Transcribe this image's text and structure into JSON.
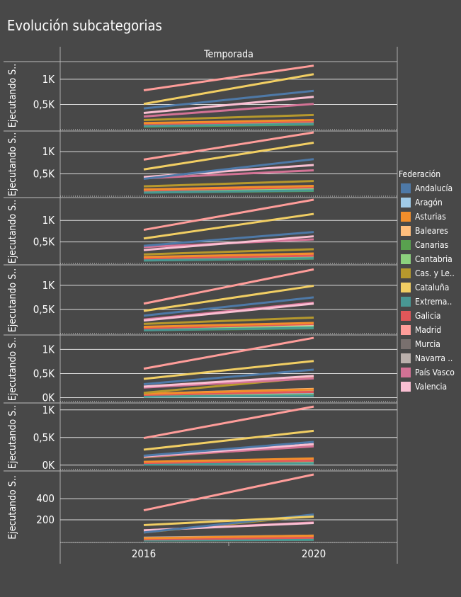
{
  "title": "Evolución subcategorias",
  "chart_data": {
    "type": "line",
    "column_header": "Temporada",
    "x_categories": [
      "2016",
      "2020"
    ],
    "row_label": "Ejecutando S..",
    "legend_title": "Federación",
    "legend_placement": "right",
    "federations": [
      {
        "name": "Andalucía",
        "color": "#4e79a7"
      },
      {
        "name": "Aragón",
        "color": "#a0cbe8"
      },
      {
        "name": "Asturias",
        "color": "#f28e2b"
      },
      {
        "name": "Baleares",
        "color": "#ffbe7d"
      },
      {
        "name": "Canarias",
        "color": "#59a14f"
      },
      {
        "name": "Cantabria",
        "color": "#8cd17d"
      },
      {
        "name": "Cas. y Le..",
        "color": "#b6992d"
      },
      {
        "name": "Cataluña",
        "color": "#f1ce63"
      },
      {
        "name": "Extrema..",
        "color": "#499894"
      },
      {
        "name": "Galicia",
        "color": "#e15759"
      },
      {
        "name": "Madrid",
        "color": "#ff9d9a"
      },
      {
        "name": "Murcia",
        "color": "#79706e"
      },
      {
        "name": "Navarra ..",
        "color": "#bab0ac"
      },
      {
        "name": "País Vasco",
        "color": "#d37295"
      },
      {
        "name": "Valencia",
        "color": "#fabfd2"
      }
    ],
    "panels": [
      {
        "ylim": [
          0,
          1350
        ],
        "yticks": [
          {
            "v": 500,
            "label": "0,5K"
          },
          {
            "v": 1000,
            "label": "1K"
          }
        ],
        "values": [
          [
            420,
            770
          ],
          [
            100,
            140
          ],
          [
            130,
            190
          ],
          [
            120,
            170
          ],
          [
            60,
            100
          ],
          [
            80,
            120
          ],
          [
            190,
            290
          ],
          [
            510,
            1100
          ],
          [
            70,
            110
          ],
          [
            110,
            160
          ],
          [
            780,
            1270
          ],
          [
            90,
            130
          ],
          [
            110,
            150
          ],
          [
            260,
            510
          ],
          [
            330,
            650
          ]
        ]
      },
      {
        "ylim": [
          0,
          1430
        ],
        "yticks": [
          {
            "v": 500,
            "label": "0,5K"
          },
          {
            "v": 1000,
            "label": "1K"
          }
        ],
        "values": [
          [
            390,
            830
          ],
          [
            110,
            170
          ],
          [
            150,
            230
          ],
          [
            130,
            200
          ],
          [
            80,
            120
          ],
          [
            100,
            150
          ],
          [
            220,
            340
          ],
          [
            600,
            1200
          ],
          [
            80,
            130
          ],
          [
            130,
            200
          ],
          [
            820,
            1430
          ],
          [
            100,
            160
          ],
          [
            120,
            180
          ],
          [
            400,
            580
          ],
          [
            430,
            700
          ]
        ]
      },
      {
        "ylim": [
          0,
          1480
        ],
        "yticks": [
          {
            "v": 500,
            "label": "0,5K"
          },
          {
            "v": 1000,
            "label": "1K"
          }
        ],
        "values": [
          [
            410,
            730
          ],
          [
            100,
            160
          ],
          [
            150,
            230
          ],
          [
            130,
            200
          ],
          [
            70,
            110
          ],
          [
            90,
            140
          ],
          [
            210,
            330
          ],
          [
            580,
            1150
          ],
          [
            70,
            120
          ],
          [
            120,
            180
          ],
          [
            780,
            1480
          ],
          [
            90,
            150
          ],
          [
            110,
            170
          ],
          [
            380,
            560
          ],
          [
            310,
            630
          ]
        ]
      },
      {
        "ylim": [
          0,
          1380
        ],
        "yticks": [
          {
            "v": 500,
            "label": "0,5K"
          },
          {
            "v": 1000,
            "label": "1K"
          }
        ],
        "values": [
          [
            370,
            750
          ],
          [
            100,
            150
          ],
          [
            140,
            220
          ],
          [
            120,
            190
          ],
          [
            70,
            110
          ],
          [
            90,
            140
          ],
          [
            200,
            330
          ],
          [
            470,
            990
          ],
          [
            70,
            120
          ],
          [
            110,
            200
          ],
          [
            620,
            1330
          ],
          [
            90,
            140
          ],
          [
            110,
            170
          ],
          [
            290,
            640
          ],
          [
            270,
            620
          ]
        ]
      },
      {
        "ylim": [
          -80,
          1270
        ],
        "yticks": [
          {
            "v": 0,
            "label": "0K"
          },
          {
            "v": 500,
            "label": "0,5K"
          },
          {
            "v": 1000,
            "label": "1K"
          }
        ],
        "values": [
          [
            280,
            580
          ],
          [
            40,
            70
          ],
          [
            80,
            170
          ],
          [
            80,
            180
          ],
          [
            20,
            50
          ],
          [
            30,
            60
          ],
          [
            100,
            420
          ],
          [
            390,
            760
          ],
          [
            20,
            40
          ],
          [
            60,
            120
          ],
          [
            600,
            1240
          ],
          [
            40,
            80
          ],
          [
            80,
            150
          ],
          [
            210,
            400
          ],
          [
            230,
            450
          ]
        ]
      },
      {
        "ylim": [
          -80,
          1100
        ],
        "yticks": [
          {
            "v": 0,
            "label": "0K"
          },
          {
            "v": 500,
            "label": "0,5K"
          },
          {
            "v": 1000,
            "label": "1K"
          }
        ],
        "values": [
          [
            170,
            420
          ],
          [
            20,
            50
          ],
          [
            60,
            120
          ],
          [
            50,
            100
          ],
          [
            10,
            30
          ],
          [
            20,
            40
          ],
          [
            140,
            350
          ],
          [
            280,
            620
          ],
          [
            10,
            30
          ],
          [
            40,
            80
          ],
          [
            490,
            1060
          ],
          [
            20,
            50
          ],
          [
            50,
            100
          ],
          [
            150,
            340
          ],
          [
            160,
            380
          ]
        ]
      },
      {
        "ylim": [
          -15,
          650
        ],
        "yticks": [
          {
            "v": 200,
            "label": "200"
          },
          {
            "v": 400,
            "label": "400"
          }
        ],
        "values": [
          [
            80,
            250
          ],
          [
            10,
            20
          ],
          [
            25,
            50
          ],
          [
            25,
            45
          ],
          [
            5,
            10
          ],
          [
            5,
            15
          ],
          [
            80,
            240
          ],
          [
            150,
            230
          ],
          [
            5,
            10
          ],
          [
            15,
            30
          ],
          [
            290,
            630
          ],
          [
            15,
            30
          ],
          [
            30,
            50
          ],
          [
            100,
            175
          ],
          [
            100,
            170
          ]
        ]
      }
    ]
  }
}
